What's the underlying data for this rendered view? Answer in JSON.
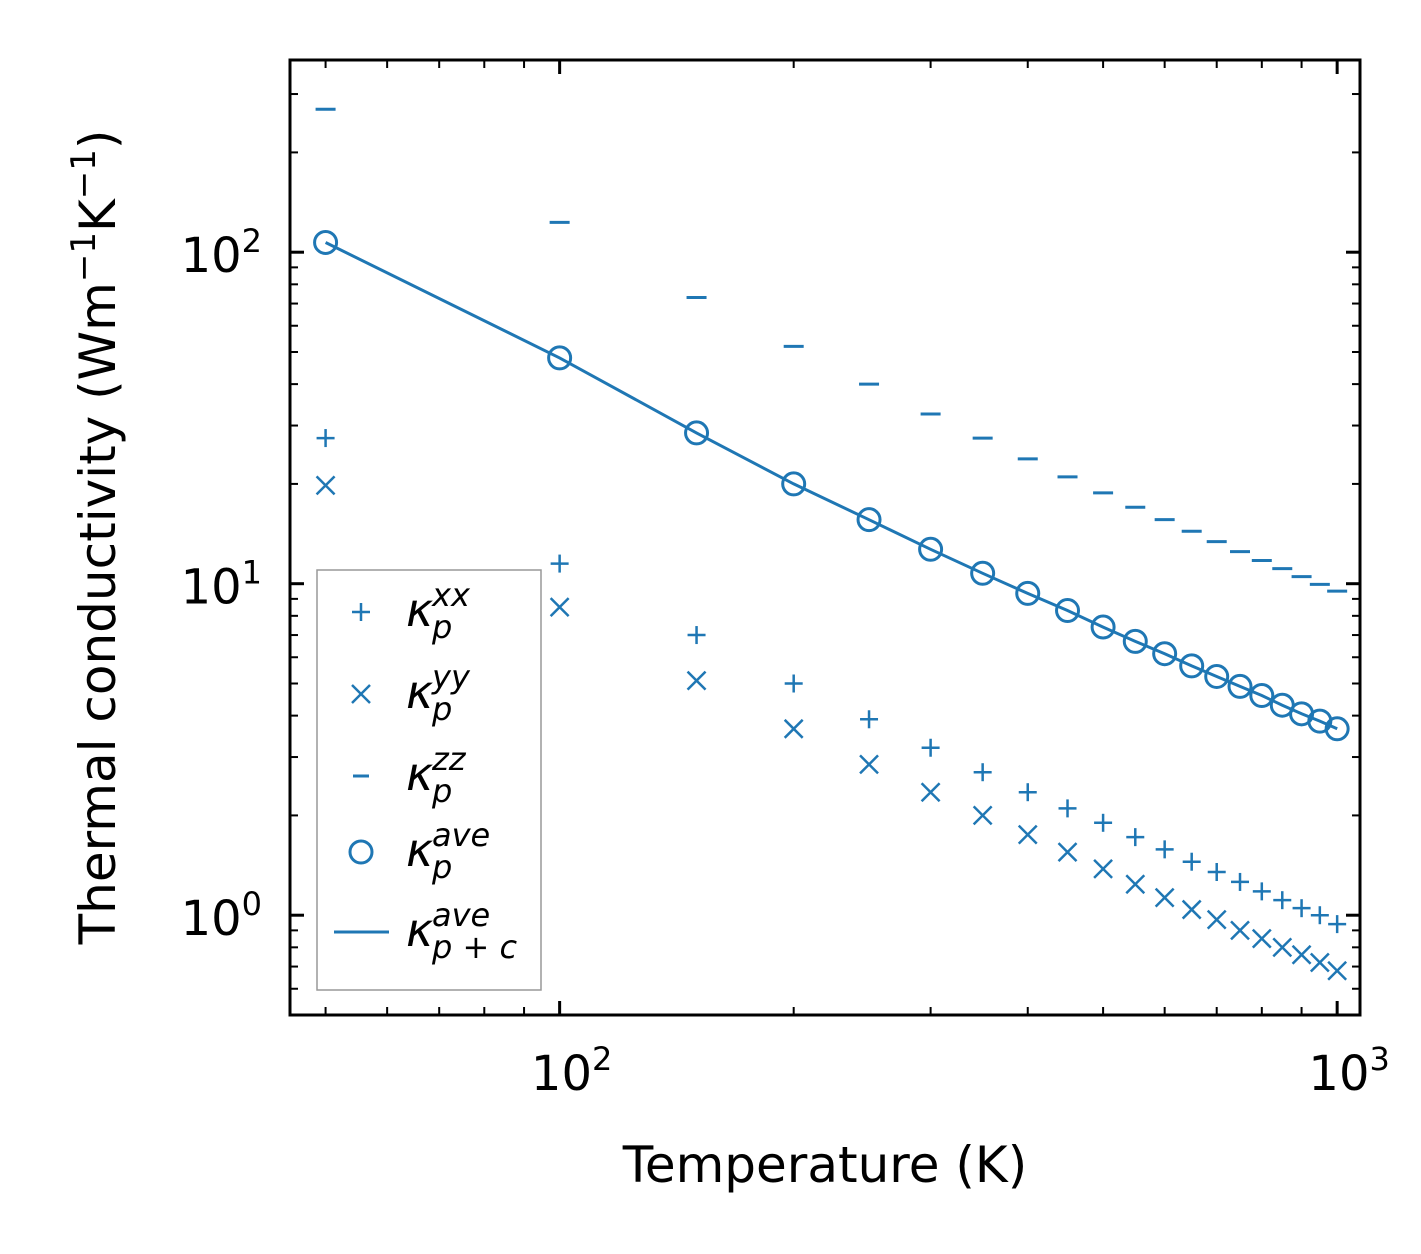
{
  "chart_data": {
    "type": "scatter",
    "xscale": "log",
    "yscale": "log",
    "xlabel": "Temperature (K)",
    "ylabel": {
      "base": "Thermal conductivity (Wm",
      "exp1": "−1",
      "mid": "K",
      "exp2": "−1",
      "end": ")"
    },
    "xlim": [
      45,
      1070
    ],
    "ylim": [
      0.5,
      380
    ],
    "x_ticks": [
      {
        "base": "10",
        "exp": "2",
        "value": 100
      },
      {
        "base": "10",
        "exp": "3",
        "value": 1000
      }
    ],
    "y_ticks": [
      {
        "base": "10",
        "exp": "0",
        "value": 1
      },
      {
        "base": "10",
        "exp": "1",
        "value": 10
      },
      {
        "base": "10",
        "exp": "2",
        "value": 100
      }
    ],
    "temperatures": [
      50,
      100,
      150,
      200,
      250,
      300,
      350,
      400,
      450,
      500,
      550,
      600,
      650,
      700,
      750,
      800,
      850,
      900,
      950,
      1000
    ],
    "series": [
      {
        "name": "kxx",
        "marker": "plus",
        "legend": {
          "sym": "κ",
          "sub": "p",
          "sup": "xx"
        },
        "values": [
          27.5,
          11.5,
          7.0,
          5.0,
          3.9,
          3.2,
          2.7,
          2.35,
          2.1,
          1.9,
          1.72,
          1.58,
          1.45,
          1.35,
          1.26,
          1.18,
          1.11,
          1.05,
          1.0,
          0.94
        ]
      },
      {
        "name": "kyy",
        "marker": "x",
        "legend": {
          "sym": "κ",
          "sub": "p",
          "sup": "yy"
        },
        "values": [
          19.8,
          8.5,
          5.1,
          3.65,
          2.85,
          2.35,
          2.0,
          1.75,
          1.55,
          1.38,
          1.24,
          1.13,
          1.04,
          0.97,
          0.9,
          0.85,
          0.8,
          0.76,
          0.72,
          0.68
        ]
      },
      {
        "name": "kzz",
        "marker": "hline",
        "legend": {
          "sym": "κ",
          "sub": "p",
          "sup": "zz"
        },
        "values": [
          270,
          123,
          73,
          52,
          40,
          32.5,
          27.5,
          23.8,
          21.0,
          18.8,
          17.0,
          15.6,
          14.4,
          13.4,
          12.5,
          11.75,
          11.1,
          10.5,
          9.95,
          9.5
        ]
      },
      {
        "name": "kave",
        "marker": "circle",
        "legend": {
          "sym": "κ",
          "sub": "p",
          "sup": "ave"
        },
        "values": [
          107,
          48,
          28.5,
          20,
          15.6,
          12.7,
          10.75,
          9.35,
          8.3,
          7.4,
          6.7,
          6.15,
          5.65,
          5.25,
          4.9,
          4.6,
          4.3,
          4.05,
          3.85,
          3.65
        ]
      },
      {
        "name": "kave_pc",
        "marker": "line",
        "legend": {
          "sym": "κ",
          "sub": "p + c",
          "sup": "ave"
        },
        "values": [
          107,
          48,
          28.5,
          20,
          15.6,
          12.7,
          10.75,
          9.35,
          8.3,
          7.4,
          6.7,
          6.15,
          5.65,
          5.25,
          4.9,
          4.6,
          4.3,
          4.05,
          3.85,
          3.65
        ]
      }
    ],
    "color": "#1f77b4",
    "legend_position": "lower-left"
  }
}
